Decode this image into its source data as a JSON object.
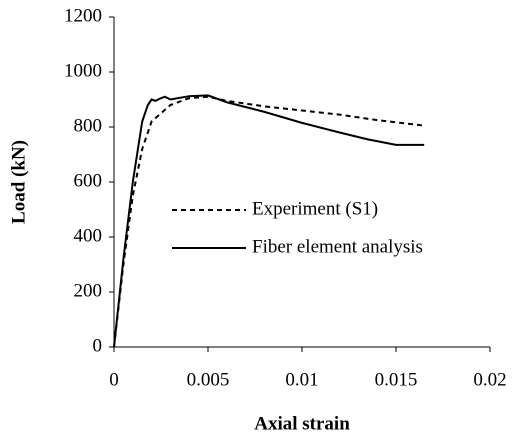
{
  "chart_data": {
    "type": "line",
    "xlabel": "Axial strain",
    "ylabel": "Load (kN)",
    "xlim": [
      0,
      0.02
    ],
    "xticks": [
      0,
      0.005,
      0.01,
      0.015,
      0.02
    ],
    "ylim": [
      0,
      1200
    ],
    "yticks": [
      0,
      200,
      400,
      600,
      800,
      1000,
      1200
    ],
    "grid": false,
    "legend": "center",
    "series": [
      {
        "name": "Experiment (S1)",
        "color": "#000000",
        "dash": "dashed",
        "x": [
          0,
          0.0005,
          0.001,
          0.0015,
          0.002,
          0.003,
          0.004,
          0.005,
          0.006,
          0.008,
          0.01,
          0.012,
          0.014,
          0.0165
        ],
        "values": [
          0,
          300,
          550,
          720,
          820,
          880,
          905,
          910,
          895,
          875,
          860,
          845,
          825,
          805
        ]
      },
      {
        "name": "Fiber element analysis",
        "color": "#000000",
        "dash": "solid",
        "x": [
          0,
          0.0005,
          0.001,
          0.0015,
          0.0018,
          0.002,
          0.0022,
          0.0025,
          0.0027,
          0.003,
          0.004,
          0.005,
          0.006,
          0.008,
          0.01,
          0.012,
          0.0135,
          0.015,
          0.0165
        ],
        "values": [
          0,
          320,
          600,
          820,
          880,
          900,
          895,
          905,
          910,
          900,
          912,
          915,
          890,
          855,
          815,
          780,
          755,
          735,
          735
        ]
      }
    ]
  }
}
